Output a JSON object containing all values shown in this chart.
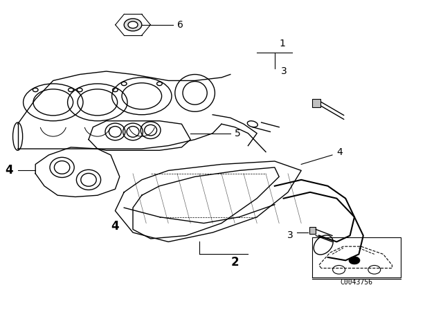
{
  "title": "",
  "background_color": "#ffffff",
  "line_color": "#000000",
  "diagram_code": "C0043756",
  "figsize": [
    6.4,
    4.48
  ],
  "dpi": 100
}
